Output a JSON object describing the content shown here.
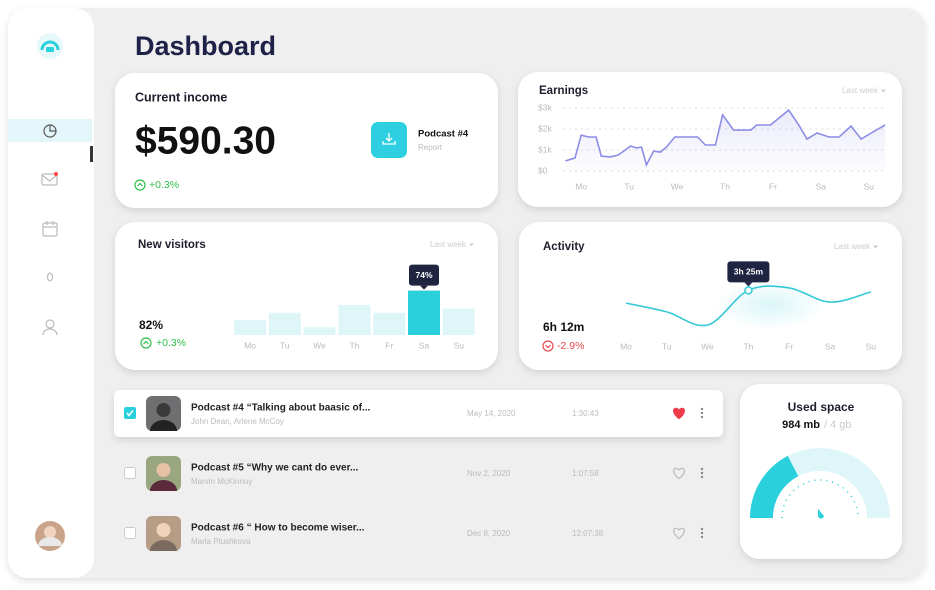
{
  "title": "Dashboard",
  "current_income": {
    "title": "Current income",
    "amount": "$590.30",
    "change": "+0.3%",
    "report": {
      "title": "Podcast #4",
      "subtitle": "Report"
    }
  },
  "earnings": {
    "type": "line",
    "title": "Earnings",
    "period": "Last week",
    "x": [
      -0.33,
      -0.13,
      0,
      0.15,
      0.31,
      0.42,
      0.61,
      0.77,
      0.92,
      1.03,
      1.15,
      1.26,
      1.36,
      1.51,
      1.65,
      1.78,
      1.95,
      2.09,
      2.24,
      2.43,
      2.59,
      2.8,
      2.95,
      3.18,
      3.54,
      3.66,
      3.95,
      4.33,
      4.54,
      4.71,
      4.92,
      5.17,
      5.38,
      5.63,
      5.84,
      6.05,
      6.34
    ],
    "values": [
      480,
      620,
      1710,
      1620,
      1620,
      710,
      670,
      760,
      1000,
      1190,
      1100,
      1140,
      290,
      950,
      900,
      1140,
      1620,
      1620,
      1620,
      1620,
      1240,
      1240,
      2670,
      1950,
      1950,
      2190,
      2190,
      2900,
      2190,
      1520,
      1810,
      1620,
      1620,
      2140,
      1520,
      1810,
      2190
    ],
    "color": "#8b8ee6",
    "xlim": [
      -0.38,
      6.38
    ],
    "xticks": [
      {
        "value": 0,
        "label": "Mo"
      },
      {
        "value": 1,
        "label": "Tu"
      },
      {
        "value": 2,
        "label": "We"
      },
      {
        "value": 3,
        "label": "Th"
      },
      {
        "value": 4,
        "label": "Fr"
      },
      {
        "value": 5,
        "label": "Sa"
      },
      {
        "value": 6,
        "label": "Su"
      }
    ],
    "ylim": [
      0,
      3000
    ],
    "yticks": [
      {
        "value": 0,
        "label": "$0"
      },
      {
        "value": 1000,
        "label": "$1k"
      },
      {
        "value": 2000,
        "label": "$2k"
      },
      {
        "value": 3000,
        "label": "$3k"
      }
    ],
    "grid": true
  },
  "new_visitors": {
    "type": "bar",
    "title": "New visitors",
    "period": "Last week",
    "total": "82%",
    "change": "+0.3%",
    "categories": [
      "Mo",
      "Tu",
      "We",
      "Th",
      "Fr",
      "Sa",
      "Su"
    ],
    "values": [
      25,
      37,
      13,
      50,
      37,
      74,
      44
    ],
    "value_labels": [
      null,
      null,
      null,
      null,
      null,
      "74%",
      null
    ],
    "ylim": [
      0,
      100
    ],
    "color": "#dff6f9",
    "highlight_color": "#2bd0dd"
  },
  "activity": {
    "type": "line",
    "title": "Activity",
    "period": "Last week",
    "total": "6h 12m",
    "change": "-2.9%",
    "categories": [
      "Mo",
      "Tu",
      "We",
      "Th",
      "Fr",
      "Sa",
      "Su"
    ],
    "values": [
      157,
      124,
      75,
      205,
      214,
      161,
      199
    ],
    "value_labels": [
      null,
      null,
      null,
      "3h 25m",
      null,
      null,
      null
    ],
    "ylim": [
      0,
      300
    ],
    "color": "#35c9d6"
  },
  "podcasts": [
    {
      "title": "Podcast #4 “Talking about baasic of...",
      "authors": "John Dean, Arlene McCoy",
      "date": "May 14, 2020",
      "duration": "1:30:43",
      "selected": true,
      "liked": true
    },
    {
      "title": "Podcast #5 “Why we cant do ever...",
      "authors": "Marvin McKinnuy",
      "date": "Nov 2, 2020",
      "duration": "1:07:58",
      "selected": false,
      "liked": false
    },
    {
      "title": "Podcast #6 “ How to become wiser...",
      "authors": "Marla Ptushkova",
      "date": "Dec 8, 2020",
      "duration": "12:07:38",
      "selected": false,
      "liked": false
    }
  ],
  "storage": {
    "title": "Used space",
    "used": "984 mb",
    "total": "/ 4 gb"
  }
}
